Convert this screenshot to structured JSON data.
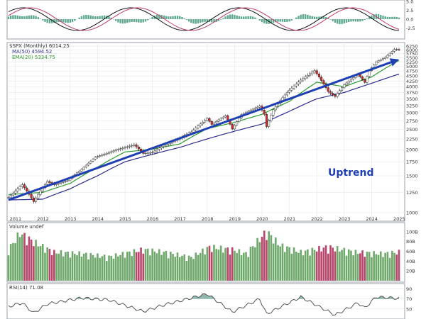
{
  "colors": {
    "panel_border": "#9aa0a8",
    "grid": "#e3e6ea",
    "text": "#333333",
    "up_body": "#ffffff",
    "down_body": "#d42a2a",
    "candle_outline": "#111111",
    "ma50": "#2d2d8f",
    "ema20": "#2e9a2e",
    "trend_arrow": "#1f3fb4",
    "label_blue": "#1f3fb4",
    "vol_up": "#6fa86b",
    "vol_down": "#b8456a",
    "macd_hist": "#5fa890",
    "rsi_line": "#555555",
    "rsi_fill": "#8fb8b0"
  },
  "price_panel": {
    "legend": {
      "title": "$SPX (Monthly) 6014.25",
      "ma": "MA(50) 4594.52",
      "ema": "EMA(20) 5334.75"
    },
    "annotation": "Uptrend"
  },
  "volume_panel": {
    "legend": "Volume undef"
  },
  "rsi_panel": {
    "legend": "RSI(14) 71.08"
  },
  "chart_data": {
    "type": "candlestick",
    "x_tick_labels": [
      "2011",
      "2012",
      "2013",
      "2014",
      "2015",
      "2016",
      "2017",
      "2018",
      "2019",
      "2020",
      "2021",
      "2022",
      "2023",
      "2024",
      "2025"
    ],
    "price_axis": {
      "scale": "log",
      "ylim": [
        1000,
        6300
      ],
      "tick_labels": [
        "6250",
        "6000",
        "5750",
        "5500",
        "5250",
        "5000",
        "4750",
        "4500",
        "4250",
        "4000",
        "3750",
        "3500",
        "3250",
        "3000",
        "2750",
        "2500",
        "2250",
        "2000",
        "1750",
        "1500",
        "1250",
        "1000"
      ]
    },
    "price_anchors": [
      [
        "2010-10",
        1180
      ],
      [
        "2011-04",
        1360
      ],
      [
        "2011-09",
        1130
      ],
      [
        "2012-03",
        1410
      ],
      [
        "2012-06",
        1360
      ],
      [
        "2012-12",
        1430
      ],
      [
        "2013-06",
        1610
      ],
      [
        "2013-12",
        1840
      ],
      [
        "2014-09",
        1990
      ],
      [
        "2015-05",
        2110
      ],
      [
        "2015-09",
        1920
      ],
      [
        "2016-01",
        1940
      ],
      [
        "2016-06",
        2100
      ],
      [
        "2016-12",
        2240
      ],
      [
        "2017-06",
        2430
      ],
      [
        "2018-01",
        2820
      ],
      [
        "2018-03",
        2640
      ],
      [
        "2018-09",
        2910
      ],
      [
        "2018-12",
        2510
      ],
      [
        "2019-04",
        2940
      ],
      [
        "2019-12",
        3230
      ],
      [
        "2020-02",
        2950
      ],
      [
        "2020-03",
        2580
      ],
      [
        "2020-06",
        3100
      ],
      [
        "2020-12",
        3760
      ],
      [
        "2021-06",
        4300
      ],
      [
        "2021-12",
        4770
      ],
      [
        "2022-06",
        3790
      ],
      [
        "2022-09",
        3590
      ],
      [
        "2023-01",
        4080
      ],
      [
        "2023-07",
        4590
      ],
      [
        "2023-10",
        4190
      ],
      [
        "2023-12",
        4770
      ],
      [
        "2024-03",
        5250
      ],
      [
        "2024-07",
        5520
      ],
      [
        "2024-11",
        6030
      ],
      [
        "2025-01",
        6014
      ]
    ],
    "ma50_anchors": [
      [
        "2010-10",
        1150
      ],
      [
        "2012-01",
        1160
      ],
      [
        "2013-01",
        1300
      ],
      [
        "2014-01",
        1500
      ],
      [
        "2015-01",
        1750
      ],
      [
        "2016-01",
        1900
      ],
      [
        "2017-01",
        2050
      ],
      [
        "2018-01",
        2250
      ],
      [
        "2019-01",
        2450
      ],
      [
        "2020-01",
        2650
      ],
      [
        "2021-01",
        3050
      ],
      [
        "2022-01",
        3500
      ],
      [
        "2023-01",
        3750
      ],
      [
        "2024-01",
        4150
      ],
      [
        "2025-01",
        4594
      ]
    ],
    "ema20_anchors": [
      [
        "2010-10",
        1220
      ],
      [
        "2012-01",
        1250
      ],
      [
        "2013-01",
        1380
      ],
      [
        "2014-01",
        1650
      ],
      [
        "2015-01",
        1950
      ],
      [
        "2016-01",
        2010
      ],
      [
        "2017-01",
        2130
      ],
      [
        "2018-01",
        2520
      ],
      [
        "2019-01",
        2700
      ],
      [
        "2020-01",
        2950
      ],
      [
        "2021-01",
        3400
      ],
      [
        "2022-01",
        4200
      ],
      [
        "2023-01",
        4000
      ],
      [
        "2024-01",
        4450
      ],
      [
        "2025-01",
        5334
      ]
    ],
    "trendline": {
      "start": [
        "2010-10",
        1150
      ],
      "end": [
        "2025-01",
        5400
      ]
    },
    "volume_axis": {
      "tick_labels": [
        "100B",
        "80B",
        "60B",
        "40B",
        "20B"
      ],
      "ylim": [
        0,
        110
      ]
    },
    "volume_anchors": [
      [
        "2010-10",
        60
      ],
      [
        "2011-03",
        92
      ],
      [
        "2011-09",
        75
      ],
      [
        "2012-06",
        55
      ],
      [
        "2013-06",
        52
      ],
      [
        "2014-06",
        46
      ],
      [
        "2015-09",
        60
      ],
      [
        "2016-06",
        55
      ],
      [
        "2017-06",
        45
      ],
      [
        "2018-02",
        65
      ],
      [
        "2018-12",
        60
      ],
      [
        "2019-06",
        52
      ],
      [
        "2020-03",
        95
      ],
      [
        "2020-09",
        68
      ],
      [
        "2021-06",
        55
      ],
      [
        "2022-06",
        65
      ],
      [
        "2023-06",
        55
      ],
      [
        "2024-06",
        52
      ],
      [
        "2025-01",
        55
      ]
    ],
    "rsi_axis": {
      "tick_labels": [
        "90",
        "70",
        "50"
      ],
      "ylim": [
        30,
        95
      ]
    },
    "rsi_anchors": [
      [
        "2010-10",
        55
      ],
      [
        "2011-04",
        62
      ],
      [
        "2011-09",
        42
      ],
      [
        "2012-03",
        60
      ],
      [
        "2013-06",
        72
      ],
      [
        "2014-06",
        68
      ],
      [
        "2015-09",
        45
      ],
      [
        "2016-06",
        58
      ],
      [
        "2018-01",
        80
      ],
      [
        "2018-12",
        44
      ],
      [
        "2019-12",
        70
      ],
      [
        "2020-03",
        40
      ],
      [
        "2021-06",
        74
      ],
      [
        "2022-09",
        38
      ],
      [
        "2023-07",
        62
      ],
      [
        "2023-10",
        52
      ],
      [
        "2024-03",
        74
      ],
      [
        "2025-01",
        71
      ]
    ],
    "macd_axis": {
      "tick_labels": [
        "5.0",
        "2.5",
        "0.0",
        "-2.5"
      ]
    }
  }
}
